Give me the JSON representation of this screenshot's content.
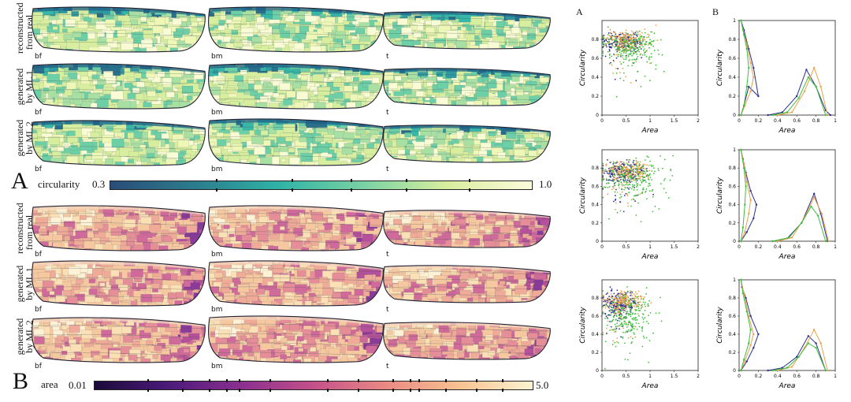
{
  "panel_a": {
    "letter": "A",
    "row_labels": [
      "reconstructed from real",
      "generated by ML 1",
      "generated by ML 2"
    ],
    "wing_labels": [
      "bf",
      "bm",
      "t"
    ],
    "colorbar": {
      "label": "circularity",
      "min": "0.3",
      "max": "1.0",
      "colors": [
        "#2a4d78",
        "#2b7c8c",
        "#2fb3a6",
        "#79d2a4",
        "#d9ee9f",
        "#fbfbdc"
      ]
    }
  },
  "panel_b": {
    "letter": "B",
    "row_labels": [
      "reconstructed from real",
      "generated by ML 1",
      "generated by ML 2"
    ],
    "wing_labels": [
      "bf",
      "bm",
      "t"
    ],
    "colorbar": {
      "label": "area",
      "min": "0.01",
      "max": "5.0",
      "colors": [
        "#1c0a3a",
        "#4b1a7a",
        "#8a2f8f",
        "#c4508a",
        "#ea8a84",
        "#f8c291",
        "#fcf4d2"
      ]
    }
  },
  "plots": {
    "col_letters": [
      "A",
      "B"
    ],
    "scatter": {
      "xlabel": "Area",
      "ylabel": "Circularity",
      "xticks": [
        "0",
        "0.5",
        "1",
        "1.5",
        "2"
      ],
      "yticks": [
        "0",
        "0.2",
        "0.4",
        "0.6",
        "0.8"
      ]
    },
    "dist": {
      "xlabel": "Area",
      "ylabel": "Circularity",
      "xticks": [
        "0",
        "0.2",
        "0.4",
        "0.6",
        "0.8",
        "1"
      ],
      "yticks": [
        "0",
        "0.2",
        "0.4",
        "0.6",
        "0.8",
        "1"
      ]
    },
    "series_colors": [
      "#2b2f8f",
      "#e8a34a",
      "#3fbf3f"
    ]
  },
  "chart_data": [
    {
      "type": "scatter",
      "row": 1,
      "xlabel": "Area",
      "ylabel": "Circularity",
      "xlim": [
        0,
        2
      ],
      "ylim": [
        0,
        1
      ],
      "series": [
        {
          "center": [
            0.45,
            0.78
          ],
          "spread": [
            0.35,
            0.07
          ]
        },
        {
          "center": [
            0.55,
            0.78
          ],
          "spread": [
            0.35,
            0.08
          ]
        },
        {
          "center": [
            0.6,
            0.72
          ],
          "spread": [
            0.45,
            0.12
          ]
        }
      ]
    },
    {
      "type": "scatter",
      "row": 2,
      "xlabel": "Area",
      "ylabel": "Circularity",
      "xlim": [
        0,
        2
      ],
      "ylim": [
        0,
        1
      ],
      "series": [
        {
          "center": [
            0.45,
            0.76
          ],
          "spread": [
            0.35,
            0.08
          ]
        },
        {
          "center": [
            0.55,
            0.77
          ],
          "spread": [
            0.35,
            0.08
          ]
        },
        {
          "center": [
            0.65,
            0.7
          ],
          "spread": [
            0.5,
            0.14
          ]
        }
      ]
    },
    {
      "type": "scatter",
      "row": 3,
      "xlabel": "Area",
      "ylabel": "Circularity",
      "xlim": [
        0,
        2
      ],
      "ylim": [
        0,
        1
      ],
      "series": [
        {
          "center": [
            0.35,
            0.74
          ],
          "spread": [
            0.25,
            0.1
          ]
        },
        {
          "center": [
            0.45,
            0.76
          ],
          "spread": [
            0.3,
            0.09
          ]
        },
        {
          "center": [
            0.55,
            0.62
          ],
          "spread": [
            0.4,
            0.17
          ]
        }
      ]
    },
    {
      "type": "line",
      "row": 1,
      "xlabel": "Area",
      "ylabel": "Circularity",
      "xlim": [
        0,
        1
      ],
      "ylim": [
        0,
        1
      ],
      "left": [
        {
          "points": [
            [
              0.02,
              0
            ],
            [
              0.05,
              0.1
            ],
            [
              0.1,
              0.3
            ],
            [
              0.2,
              0.2
            ],
            [
              0.15,
              0.5
            ],
            [
              0.1,
              0.7
            ],
            [
              0.05,
              0.9
            ],
            [
              0.02,
              1
            ]
          ]
        },
        {
          "points": [
            [
              0.02,
              0
            ],
            [
              0.06,
              0.1
            ],
            [
              0.12,
              0.25
            ],
            [
              0.15,
              0.4
            ],
            [
              0.12,
              0.55
            ],
            [
              0.08,
              0.75
            ],
            [
              0.04,
              0.9
            ],
            [
              0.02,
              1
            ]
          ]
        },
        {
          "points": [
            [
              0.02,
              0
            ],
            [
              0.05,
              0.1
            ],
            [
              0.08,
              0.3
            ],
            [
              0.1,
              0.5
            ],
            [
              0.08,
              0.7
            ],
            [
              0.05,
              0.85
            ],
            [
              0.02,
              1
            ]
          ]
        }
      ],
      "right": [
        {
          "points": [
            [
              0.3,
              0
            ],
            [
              0.45,
              0.03
            ],
            [
              0.6,
              0.2
            ],
            [
              0.7,
              0.48
            ],
            [
              0.8,
              0.3
            ],
            [
              0.9,
              0.05
            ],
            [
              0.95,
              0
            ]
          ]
        },
        {
          "points": [
            [
              0.4,
              0
            ],
            [
              0.55,
              0.03
            ],
            [
              0.68,
              0.25
            ],
            [
              0.78,
              0.5
            ],
            [
              0.85,
              0.3
            ],
            [
              0.92,
              0
            ]
          ]
        },
        {
          "points": [
            [
              0.35,
              0
            ],
            [
              0.5,
              0.03
            ],
            [
              0.62,
              0.18
            ],
            [
              0.72,
              0.4
            ],
            [
              0.8,
              0.3
            ],
            [
              0.9,
              0
            ]
          ]
        }
      ]
    },
    {
      "type": "line",
      "row": 2,
      "xlabel": "Area",
      "ylabel": "Circularity",
      "xlim": [
        0,
        1
      ],
      "ylim": [
        0,
        1
      ],
      "left": [
        {
          "points": [
            [
              0.02,
              0
            ],
            [
              0.08,
              0.1
            ],
            [
              0.15,
              0.25
            ],
            [
              0.18,
              0.4
            ],
            [
              0.12,
              0.55
            ],
            [
              0.07,
              0.75
            ],
            [
              0.04,
              0.9
            ],
            [
              0.02,
              1
            ]
          ]
        },
        {
          "points": [
            [
              0.02,
              0
            ],
            [
              0.06,
              0.1
            ],
            [
              0.1,
              0.3
            ],
            [
              0.12,
              0.45
            ],
            [
              0.08,
              0.65
            ],
            [
              0.05,
              0.85
            ],
            [
              0.02,
              1
            ]
          ]
        },
        {
          "points": [
            [
              0.02,
              0
            ],
            [
              0.04,
              0.15
            ],
            [
              0.06,
              0.4
            ],
            [
              0.07,
              0.6
            ],
            [
              0.05,
              0.8
            ],
            [
              0.02,
              1
            ]
          ]
        }
      ],
      "right": [
        {
          "points": [
            [
              0.35,
              0
            ],
            [
              0.5,
              0.03
            ],
            [
              0.65,
              0.2
            ],
            [
              0.78,
              0.52
            ],
            [
              0.85,
              0.3
            ],
            [
              0.92,
              0
            ]
          ]
        },
        {
          "points": [
            [
              0.4,
              0
            ],
            [
              0.55,
              0.04
            ],
            [
              0.68,
              0.26
            ],
            [
              0.78,
              0.48
            ],
            [
              0.86,
              0.3
            ],
            [
              0.93,
              0
            ]
          ]
        },
        {
          "points": [
            [
              0.35,
              0
            ],
            [
              0.52,
              0.04
            ],
            [
              0.65,
              0.2
            ],
            [
              0.75,
              0.38
            ],
            [
              0.82,
              0.28
            ],
            [
              0.9,
              0
            ]
          ]
        }
      ]
    },
    {
      "type": "line",
      "row": 3,
      "xlabel": "Area",
      "ylabel": "Circularity",
      "xlim": [
        0,
        1
      ],
      "ylim": [
        0,
        1
      ],
      "left": [
        {
          "points": [
            [
              0.02,
              0
            ],
            [
              0.08,
              0.1
            ],
            [
              0.15,
              0.25
            ],
            [
              0.2,
              0.4
            ],
            [
              0.12,
              0.6
            ],
            [
              0.07,
              0.8
            ],
            [
              0.03,
              0.92
            ],
            [
              0.02,
              1
            ]
          ]
        },
        {
          "points": [
            [
              0.02,
              0
            ],
            [
              0.06,
              0.1
            ],
            [
              0.12,
              0.28
            ],
            [
              0.15,
              0.4
            ],
            [
              0.1,
              0.6
            ],
            [
              0.05,
              0.85
            ],
            [
              0.02,
              1
            ]
          ]
        },
        {
          "points": [
            [
              0.02,
              0
            ],
            [
              0.05,
              0.12
            ],
            [
              0.1,
              0.3
            ],
            [
              0.12,
              0.45
            ],
            [
              0.08,
              0.65
            ],
            [
              0.04,
              0.85
            ],
            [
              0.02,
              1
            ]
          ]
        }
      ],
      "right": [
        {
          "points": [
            [
              0.3,
              0
            ],
            [
              0.45,
              0.03
            ],
            [
              0.6,
              0.15
            ],
            [
              0.72,
              0.38
            ],
            [
              0.8,
              0.3
            ],
            [
              0.9,
              0
            ]
          ]
        },
        {
          "points": [
            [
              0.4,
              0
            ],
            [
              0.55,
              0.04
            ],
            [
              0.68,
              0.25
            ],
            [
              0.78,
              0.45
            ],
            [
              0.85,
              0.3
            ],
            [
              0.92,
              0
            ]
          ]
        },
        {
          "points": [
            [
              0.35,
              0
            ],
            [
              0.5,
              0.03
            ],
            [
              0.62,
              0.15
            ],
            [
              0.72,
              0.3
            ],
            [
              0.8,
              0.25
            ],
            [
              0.9,
              0
            ]
          ]
        }
      ]
    }
  ]
}
